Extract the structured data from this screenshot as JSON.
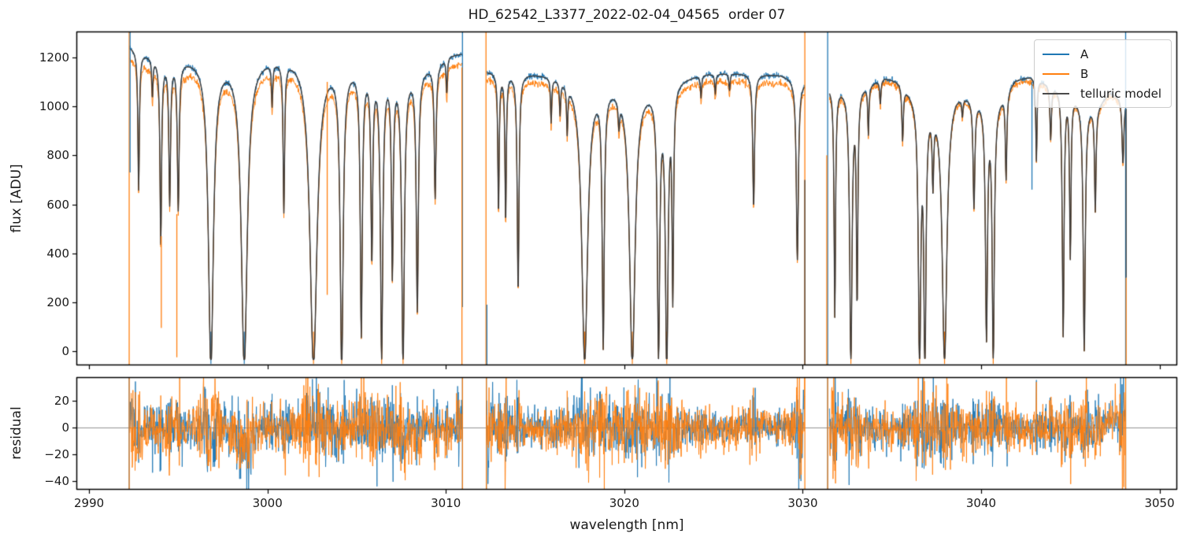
{
  "chart_data": {
    "type": "line",
    "title": "HD_62542_L3377_2022-02-04_04565  order 07",
    "xlabel": "wavelength [nm]",
    "ylabel_main": "flux [ADU]",
    "ylabel_resid": "residual",
    "xlim": [
      2989.29,
      3050.99
    ],
    "ylim_main": [
      -57.9,
      1306.2
    ],
    "ylim_resid": [
      -46.2,
      37.9
    ],
    "grid": false,
    "legend_position": "upper right",
    "x_ticks": [
      {
        "v": 2990,
        "label": "2990"
      },
      {
        "v": 3000,
        "label": "3000"
      },
      {
        "v": 3010,
        "label": "3010"
      },
      {
        "v": 3020,
        "label": "3020"
      },
      {
        "v": 3030,
        "label": "3030"
      },
      {
        "v": 3040,
        "label": "3040"
      },
      {
        "v": 3050,
        "label": "3050"
      }
    ],
    "y_ticks_main": [
      {
        "v": 0,
        "label": "0"
      },
      {
        "v": 200,
        "label": "200"
      },
      {
        "v": 400,
        "label": "400"
      },
      {
        "v": 600,
        "label": "600"
      },
      {
        "v": 800,
        "label": "800"
      },
      {
        "v": 1000,
        "label": "1000"
      },
      {
        "v": 1200,
        "label": "1200"
      }
    ],
    "y_ticks_resid": [
      {
        "v": 20,
        "label": "20"
      },
      {
        "v": 0,
        "label": "0"
      },
      {
        "v": -20,
        "label": "−20"
      },
      {
        "v": -40,
        "label": "−40"
      }
    ],
    "legend": [
      {
        "label": "A",
        "color": "#1f77b4"
      },
      {
        "label": "B",
        "color": "#ff7f0e"
      },
      {
        "label": "telluric model",
        "color": "#4a4a4a"
      }
    ],
    "colors": {
      "A": "#1f77b4",
      "B": "#ff7f0e",
      "model": "#3f3b38",
      "spine": "#000000",
      "zero_line": "#909090"
    },
    "segments": [
      {
        "range": [
          2992.28,
          3010.93
        ],
        "b_ratio": 0.965,
        "continuum": [
          [
            2992.3,
            1248
          ],
          [
            2993.2,
            1218
          ],
          [
            2994.2,
            1195
          ],
          [
            2995.5,
            1200
          ],
          [
            2996.3,
            1205
          ],
          [
            2997.8,
            1195
          ],
          [
            2999.3,
            1200
          ],
          [
            3000.5,
            1210
          ],
          [
            3001.8,
            1215
          ],
          [
            3003.2,
            1190
          ],
          [
            3004.8,
            1175
          ],
          [
            3006.5,
            1160
          ],
          [
            3008.2,
            1150
          ],
          [
            3009.3,
            1175
          ],
          [
            3010.2,
            1215
          ],
          [
            3010.93,
            1222
          ]
        ]
      },
      {
        "range": [
          3012.3,
          3030.1
        ],
        "b_ratio": 0.973,
        "continuum": [
          [
            3012.3,
            1148
          ],
          [
            3013.5,
            1145
          ],
          [
            3015.2,
            1138
          ],
          [
            3017.0,
            1125
          ],
          [
            3018.6,
            1108
          ],
          [
            3020.2,
            1095
          ],
          [
            3021.8,
            1085
          ],
          [
            3023.2,
            1120
          ],
          [
            3024.5,
            1138
          ],
          [
            3026.0,
            1140
          ],
          [
            3027.5,
            1135
          ],
          [
            3028.8,
            1132
          ],
          [
            3030.1,
            1105
          ]
        ]
      },
      {
        "range": [
          3031.5,
          3048.1
        ],
        "b_ratio": 0.988,
        "continuum": [
          [
            3031.5,
            1088
          ],
          [
            3032.6,
            1082
          ],
          [
            3033.7,
            1098
          ],
          [
            3034.6,
            1125
          ],
          [
            3035.4,
            1112
          ],
          [
            3036.2,
            1060
          ],
          [
            3037.4,
            1035
          ],
          [
            3038.6,
            1075
          ],
          [
            3039.6,
            1050
          ],
          [
            3040.8,
            1020
          ],
          [
            3041.9,
            1115
          ],
          [
            3042.8,
            1128
          ],
          [
            3043.8,
            1098
          ],
          [
            3044.8,
            1085
          ],
          [
            3045.8,
            1015
          ],
          [
            3046.5,
            1005
          ],
          [
            3047.2,
            1060
          ],
          [
            3048.1,
            1030
          ]
        ]
      }
    ],
    "absorption_lines": [
      [
        2992.78,
        0.46,
        0.05
      ],
      [
        2993.55,
        0.13,
        0.04
      ],
      [
        2994.02,
        0.62,
        0.055
      ],
      [
        2994.52,
        0.48,
        0.055
      ],
      [
        2995.0,
        0.5,
        0.06
      ],
      [
        2996.83,
        1.04,
        0.17
      ],
      [
        2998.7,
        1.04,
        0.2
      ],
      [
        3000.26,
        0.14,
        0.04
      ],
      [
        3000.92,
        0.5,
        0.05
      ],
      [
        3002.58,
        1.04,
        0.24
      ],
      [
        3004.16,
        1.04,
        0.1
      ],
      [
        3005.26,
        0.92,
        0.07
      ],
      [
        3005.85,
        0.65,
        0.06
      ],
      [
        3006.4,
        1.0,
        0.08
      ],
      [
        3007.0,
        0.7,
        0.06
      ],
      [
        3007.6,
        1.03,
        0.09
      ],
      [
        3008.4,
        0.84,
        0.07
      ],
      [
        3009.4,
        0.46,
        0.06
      ],
      [
        3010.05,
        0.12,
        0.04
      ],
      [
        3012.95,
        0.5,
        0.045
      ],
      [
        3013.35,
        0.53,
        0.045
      ],
      [
        3014.05,
        0.78,
        0.06
      ],
      [
        3015.9,
        0.16,
        0.04
      ],
      [
        3016.4,
        0.12,
        0.04
      ],
      [
        3016.8,
        0.17,
        0.04
      ],
      [
        3017.78,
        1.03,
        0.2
      ],
      [
        3018.82,
        0.94,
        0.07
      ],
      [
        3019.7,
        0.1,
        0.05
      ],
      [
        3020.45,
        1.03,
        0.19
      ],
      [
        3021.92,
        0.97,
        0.08
      ],
      [
        3022.38,
        1.03,
        0.09
      ],
      [
        3022.72,
        0.75,
        0.05
      ],
      [
        3024.3,
        0.08,
        0.04
      ],
      [
        3025.1,
        0.07,
        0.04
      ],
      [
        3025.9,
        0.06,
        0.04
      ],
      [
        3027.25,
        0.48,
        0.06
      ],
      [
        3029.7,
        0.66,
        0.07
      ],
      [
        3031.8,
        0.86,
        0.05
      ],
      [
        3032.7,
        1.03,
        0.08
      ],
      [
        3033.05,
        0.78,
        0.05
      ],
      [
        3033.68,
        0.18,
        0.04
      ],
      [
        3034.35,
        0.09,
        0.04
      ],
      [
        3035.6,
        0.2,
        0.05
      ],
      [
        3036.55,
        1.03,
        0.08
      ],
      [
        3036.85,
        1.03,
        0.07
      ],
      [
        3037.3,
        0.28,
        0.05
      ],
      [
        3037.95,
        1.03,
        0.16
      ],
      [
        3038.95,
        0.07,
        0.04
      ],
      [
        3039.6,
        0.42,
        0.06
      ],
      [
        3040.3,
        0.92,
        0.07
      ],
      [
        3040.68,
        1.02,
        0.07
      ],
      [
        3041.4,
        0.33,
        0.05
      ],
      [
        3043.1,
        0.3,
        0.04
      ],
      [
        3043.9,
        0.2,
        0.05
      ],
      [
        3044.6,
        0.93,
        0.06
      ],
      [
        3045.0,
        0.62,
        0.05
      ],
      [
        3045.78,
        0.99,
        0.07
      ],
      [
        3046.4,
        0.42,
        0.05
      ],
      [
        3047.95,
        0.26,
        0.06
      ]
    ],
    "spikes_main": [
      {
        "wl": 2992.25,
        "series": "B",
        "f0": 1306,
        "f1": -58
      },
      {
        "wl": 2992.3,
        "series": "A",
        "f0": 1306,
        "f1": 730
      },
      {
        "wl": 2994.05,
        "series": "B",
        "f0": 470,
        "f1": 95
      },
      {
        "wl": 2994.92,
        "series": "B",
        "f0": 560,
        "f1": -25
      },
      {
        "wl": 3003.35,
        "series": "B",
        "f0": 1100,
        "f1": 230
      },
      {
        "wl": 3010.93,
        "series": "A",
        "f0": 1306,
        "f1": 180
      },
      {
        "wl": 3010.9,
        "series": "B",
        "f0": 1160,
        "f1": -58
      },
      {
        "wl": 3012.25,
        "series": "B",
        "f0": 1306,
        "f1": -58
      },
      {
        "wl": 3012.3,
        "series": "A",
        "f0": 190,
        "f1": -58
      },
      {
        "wl": 3030.12,
        "series": "B",
        "f0": 1306,
        "f1": -58
      },
      {
        "wl": 3030.12,
        "series": "M",
        "f0": 700,
        "f1": -58
      },
      {
        "wl": 3031.4,
        "series": "A",
        "f0": 1306,
        "f1": -58
      },
      {
        "wl": 3031.35,
        "series": "B",
        "f0": 800,
        "f1": -58
      },
      {
        "wl": 3042.85,
        "series": "A",
        "f0": 1100,
        "f1": 660
      },
      {
        "wl": 3048.1,
        "series": "A",
        "f0": 1306,
        "f1": -58
      },
      {
        "wl": 3048.13,
        "series": "M",
        "f0": 990,
        "f1": 300
      },
      {
        "wl": 3048.13,
        "series": "B",
        "f0": 300,
        "f1": -58
      }
    ],
    "spikes_resid": [
      {
        "wl": 2992.25,
        "series": [
          "A",
          "B"
        ]
      },
      {
        "wl": 3010.93,
        "series": [
          "A",
          "B"
        ]
      },
      {
        "wl": 3012.27,
        "series": [
          "A",
          "B"
        ]
      },
      {
        "wl": 3030.12,
        "series": [
          "B"
        ]
      },
      {
        "wl": 3031.4,
        "series": [
          "A",
          "B"
        ]
      },
      {
        "wl": 3048.1,
        "series": [
          "A",
          "B"
        ]
      }
    ],
    "residual_dips": [
      {
        "c": 2998.6,
        "w": 0.5,
        "a": -14
      },
      {
        "c": 2992.8,
        "w": 0.2,
        "a": -10
      },
      {
        "c": 3000.95,
        "w": 0.12,
        "a": -9
      },
      {
        "c": 3047.4,
        "w": 0.45,
        "a": 7
      }
    ],
    "noise": {
      "A_base": 1.5,
      "A_scale": 5.0,
      "B_base": 2.0,
      "B_scale": 5.5,
      "resid_A": 6.2,
      "resid_B": 7.0,
      "flank_gain": 2.3
    }
  }
}
